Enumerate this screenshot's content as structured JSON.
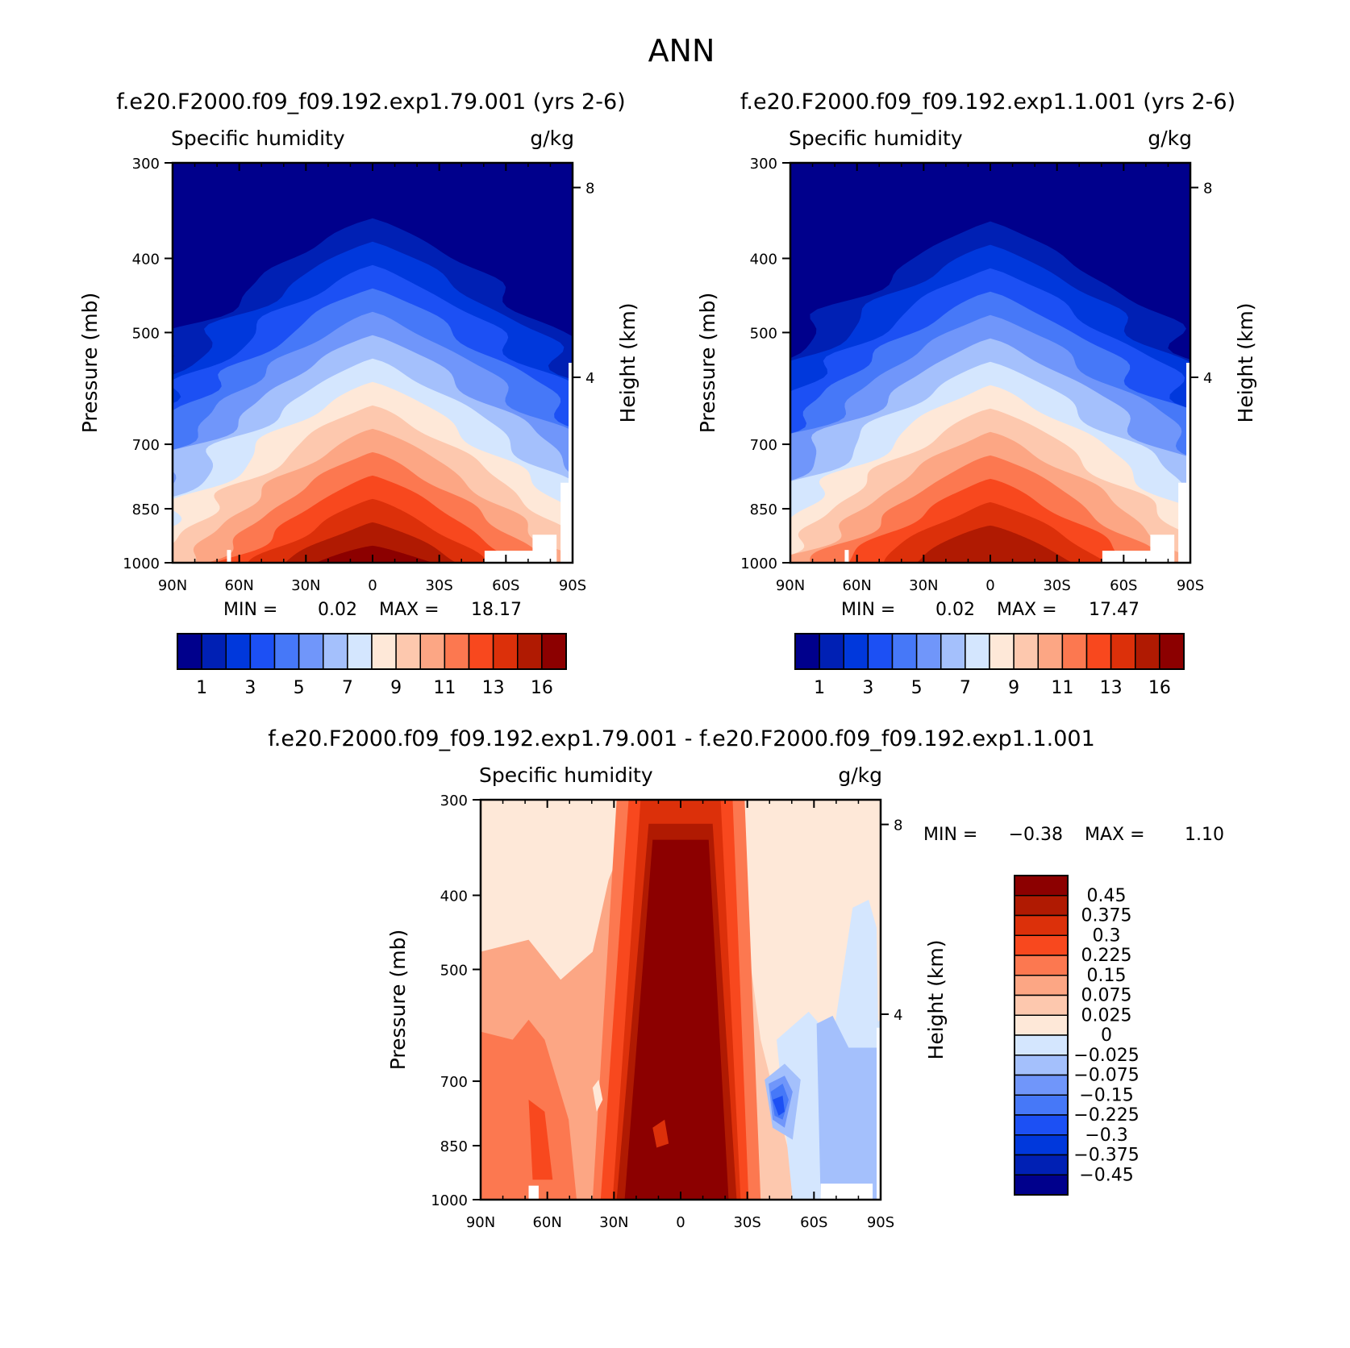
{
  "page_title": "ANN",
  "chart_data": [
    {
      "id": "panel1",
      "type": "heatmap",
      "title": "f.e20.F2000.f09_f09.192.exp1.79.001 (yrs 2-6)",
      "left_label": "Specific humidity",
      "right_label": "g/kg",
      "xlabel": "",
      "ylabel": "Pressure (mb)",
      "y2label": "Height (km)",
      "x_tick_labels": [
        "90N",
        "60N",
        "30N",
        "0",
        "30S",
        "60S",
        "90S"
      ],
      "x_tick_values": [
        90,
        60,
        30,
        0,
        -30,
        -60,
        -90
      ],
      "xlim": [
        90,
        -90
      ],
      "y_tick_labels": [
        "300",
        "400",
        "500",
        "700",
        "850",
        "1000"
      ],
      "y_tick_values": [
        300,
        400,
        500,
        700,
        850,
        1000
      ],
      "ylim": [
        1000,
        300
      ],
      "y2_tick_labels": [
        "8",
        "4"
      ],
      "y2_tick_values": [
        8,
        4
      ],
      "min_label": "MIN =",
      "min_value": "0.02",
      "max_label": "MAX =",
      "max_value": "18.17",
      "peak": 18.17,
      "colorbar_labels": [
        "1",
        "3",
        "5",
        "7",
        "9",
        "11",
        "13",
        "16"
      ],
      "colorbar_levels": [
        1,
        2,
        3,
        4,
        5,
        6,
        7,
        8,
        9,
        10,
        11,
        12,
        13,
        14,
        16
      ]
    },
    {
      "id": "panel2",
      "type": "heatmap",
      "title": "f.e20.F2000.f09_f09.192.exp1.1.001 (yrs 2-6)",
      "left_label": "Specific humidity",
      "right_label": "g/kg",
      "xlabel": "",
      "ylabel": "Pressure (mb)",
      "y2label": "Height (km)",
      "x_tick_labels": [
        "90N",
        "60N",
        "30N",
        "0",
        "30S",
        "60S",
        "90S"
      ],
      "x_tick_values": [
        90,
        60,
        30,
        0,
        -30,
        -60,
        -90
      ],
      "xlim": [
        90,
        -90
      ],
      "y_tick_labels": [
        "300",
        "400",
        "500",
        "700",
        "850",
        "1000"
      ],
      "y_tick_values": [
        300,
        400,
        500,
        700,
        850,
        1000
      ],
      "ylim": [
        1000,
        300
      ],
      "y2_tick_labels": [
        "8",
        "4"
      ],
      "y2_tick_values": [
        8,
        4
      ],
      "min_label": "MIN =",
      "min_value": "0.02",
      "max_label": "MAX =",
      "max_value": "17.47",
      "peak": 17.47,
      "colorbar_labels": [
        "1",
        "3",
        "5",
        "7",
        "9",
        "11",
        "13",
        "16"
      ],
      "colorbar_levels": [
        1,
        2,
        3,
        4,
        5,
        6,
        7,
        8,
        9,
        10,
        11,
        12,
        13,
        14,
        16
      ]
    },
    {
      "id": "panel3",
      "type": "heatmap",
      "title": "f.e20.F2000.f09_f09.192.exp1.79.001 - f.e20.F2000.f09_f09.192.exp1.1.001",
      "left_label": "Specific humidity",
      "right_label": "g/kg",
      "xlabel": "",
      "ylabel": "Pressure (mb)",
      "y2label": "Height (km)",
      "x_tick_labels": [
        "90N",
        "60N",
        "30N",
        "0",
        "30S",
        "60S",
        "90S"
      ],
      "x_tick_values": [
        90,
        60,
        30,
        0,
        -30,
        -60,
        -90
      ],
      "xlim": [
        90,
        -90
      ],
      "y_tick_labels": [
        "300",
        "400",
        "500",
        "700",
        "850",
        "1000"
      ],
      "y_tick_values": [
        300,
        400,
        500,
        700,
        850,
        1000
      ],
      "ylim": [
        1000,
        300
      ],
      "y2_tick_labels": [
        "8",
        "4"
      ],
      "y2_tick_values": [
        8,
        4
      ],
      "min_label": "MIN =",
      "min_value": "-0.38",
      "max_label": "MAX =",
      "max_value": "1.10",
      "colorbar_labels": [
        "0.45",
        "0.375",
        "0.3",
        "0.225",
        "0.15",
        "0.075",
        "0.025",
        "0",
        "-0.025",
        "-0.075",
        "-0.15",
        "-0.225",
        "-0.3",
        "-0.375",
        "-0.45"
      ]
    }
  ],
  "colors": {
    "palette": [
      "#00008c",
      "#0020b4",
      "#0038dc",
      "#1c50f4",
      "#4678f8",
      "#7096fa",
      "#a4c0fc",
      "#d4e6fe",
      "#fee8d8",
      "#fdc8ae",
      "#fca684",
      "#fc7850",
      "#f8481e",
      "#dc300a",
      "#b01a02",
      "#8c0000"
    ]
  }
}
